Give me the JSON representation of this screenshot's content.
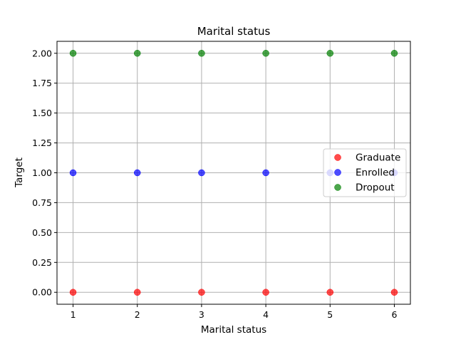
{
  "chart_data": {
    "type": "scatter",
    "title": "Marital status",
    "xlabel": "Marital status",
    "ylabel": "Target",
    "xlim": [
      0.75,
      6.25
    ],
    "ylim": [
      -0.1,
      2.1
    ],
    "xticks": [
      1,
      2,
      3,
      4,
      5,
      6
    ],
    "xtick_labels": [
      "1",
      "2",
      "3",
      "4",
      "5",
      "6"
    ],
    "yticks": [
      0,
      0.25,
      0.5,
      0.75,
      1.0,
      1.25,
      1.5,
      1.75,
      2.0
    ],
    "ytick_labels": [
      "0.00",
      "0.25",
      "0.50",
      "0.75",
      "1.00",
      "1.25",
      "1.50",
      "1.75",
      "2.00"
    ],
    "grid": true,
    "legend_position": "center-right",
    "series": [
      {
        "name": "Graduate",
        "color": "#ff0000",
        "points": [
          [
            1,
            0
          ],
          [
            2,
            0
          ],
          [
            3,
            0
          ],
          [
            4,
            0
          ],
          [
            5,
            0
          ],
          [
            6,
            0
          ]
        ]
      },
      {
        "name": "Enrolled",
        "color": "#0000ff",
        "points": [
          [
            1,
            1
          ],
          [
            2,
            1
          ],
          [
            3,
            1
          ],
          [
            4,
            1
          ],
          [
            5,
            1
          ],
          [
            6,
            1
          ]
        ]
      },
      {
        "name": "Dropout",
        "color": "#008000",
        "points": [
          [
            1,
            2
          ],
          [
            2,
            2
          ],
          [
            3,
            2
          ],
          [
            4,
            2
          ],
          [
            5,
            2
          ],
          [
            6,
            2
          ]
        ]
      }
    ]
  }
}
